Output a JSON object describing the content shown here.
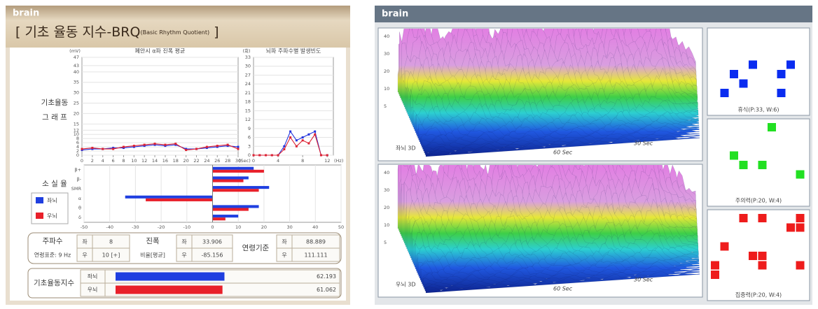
{
  "left": {
    "brand": "brain",
    "title": "[ 기초 율동 지수-BRQ",
    "title_sub": "(Basic Rhythm Quotient)",
    "title_end": " ]",
    "graph_label": [
      "기초율동",
      "그 래 프"
    ],
    "amplitude_chart": {
      "type": "line",
      "title": "폐안시 α파 진폭 평균",
      "y_unit": "(mV)",
      "x_unit": "(Sec)",
      "x": [
        0,
        2,
        4,
        6,
        8,
        10,
        12,
        14,
        16,
        18,
        20,
        22,
        24,
        26,
        28,
        30
      ],
      "xlim": [
        0,
        30
      ],
      "xticks": [
        0,
        2,
        4,
        6,
        8,
        10,
        12,
        14,
        16,
        18,
        20,
        22,
        24,
        26,
        28,
        30
      ],
      "ylim": [
        0,
        47
      ],
      "yticks": [
        0,
        2,
        4,
        6,
        8,
        10,
        12,
        15,
        20,
        25,
        30,
        35,
        40,
        43,
        47
      ],
      "series": [
        {
          "color": "#2233dd",
          "values": [
            2.5,
            3,
            3,
            3.5,
            3.5,
            4,
            4.5,
            5,
            4.5,
            5,
            3,
            3,
            3.5,
            4,
            4.5,
            4
          ]
        },
        {
          "color": "#dd2233",
          "values": [
            3,
            3.5,
            3,
            3,
            4,
            4.5,
            5,
            5.5,
            5,
            5.5,
            2.5,
            3,
            4,
            4.5,
            5,
            3
          ]
        }
      ]
    },
    "freq_chart": {
      "type": "line",
      "title": "뇌파 주파수별 발생빈도",
      "y_unit": "(회)",
      "x_unit": "(Hz)",
      "x": [
        0,
        1,
        2,
        3,
        4,
        5,
        6,
        7,
        8,
        9,
        10,
        11,
        12
      ],
      "xlim": [
        0,
        13
      ],
      "xticks": [
        0,
        4,
        8,
        12
      ],
      "ylim": [
        0,
        33
      ],
      "yticks": [
        0,
        3,
        6,
        9,
        12,
        15,
        18,
        21,
        24,
        27,
        30,
        33
      ],
      "series": [
        {
          "color": "#2233dd",
          "values": [
            0,
            0,
            0,
            0,
            0,
            3,
            8,
            5,
            6,
            7,
            8,
            0,
            0
          ]
        },
        {
          "color": "#dd2233",
          "values": [
            0,
            0,
            0,
            0,
            0,
            2,
            6,
            3,
            5,
            4,
            7,
            0,
            0
          ]
        }
      ]
    },
    "loss_chart": {
      "type": "hbar",
      "label": "소 실 율",
      "categories": [
        "β+",
        "β-",
        "SMR",
        "α",
        "θ",
        "δ"
      ],
      "xlim": [
        -50,
        50
      ],
      "xticks": [
        -50,
        -40,
        -30,
        -20,
        -10,
        0,
        10,
        20,
        30,
        40,
        50
      ],
      "series": [
        {
          "name": "좌뇌",
          "color": "#1f3fe0",
          "values": [
            16,
            14,
            22,
            -34,
            18,
            10
          ]
        },
        {
          "name": "우뇌",
          "color": "#e8202a",
          "values": [
            20,
            12,
            18,
            -26,
            14,
            5
          ]
        }
      ]
    },
    "summary": {
      "frequency": {
        "title": "주파수",
        "note": "연령표준: 9 Hz",
        "rows": [
          [
            "좌",
            8
          ],
          [
            "우",
            "10 [+]"
          ]
        ]
      },
      "amplitude": {
        "title": "진폭",
        "note": "비율[평균]",
        "rows": [
          [
            "좌",
            33.906
          ],
          [
            "우",
            -85.156
          ]
        ]
      },
      "age_standard": {
        "title": "연령기준",
        "rows": [
          [
            "좌",
            88.889
          ],
          [
            "우",
            111.111
          ]
        ]
      }
    },
    "brq": {
      "type": "hbar",
      "label": "기초율동지수",
      "categories": [
        "좌뇌",
        "우뇌"
      ],
      "values": [
        62.193,
        61.062
      ],
      "colors": [
        "#1f3fe0",
        "#e8202a"
      ],
      "xlim": [
        0,
        100
      ]
    }
  },
  "right": {
    "brand": "brain",
    "surfaces": [
      {
        "label": "좌뇌 3D",
        "time_labels": [
          "60 Sec",
          "30 Sec"
        ],
        "z_ticks": [
          40,
          30,
          20,
          10,
          5
        ]
      },
      {
        "label": "우뇌 3D",
        "time_labels": [
          "60 Sec",
          "30 Sec"
        ],
        "z_ticks": [
          40,
          30,
          20,
          10,
          5
        ]
      }
    ],
    "patterns": [
      {
        "label": "휴식(P:33, W:6)",
        "color": "#0a2cf0",
        "cells": [
          [
            2,
            4
          ],
          [
            4,
            3
          ],
          [
            3,
            5
          ],
          [
            7,
            4
          ],
          [
            8,
            3
          ],
          [
            1,
            6
          ],
          [
            7,
            6
          ]
        ]
      },
      {
        "label": "주의력(P:20, W:4)",
        "color": "#22e022",
        "cells": [
          [
            6,
            0
          ],
          [
            2,
            3
          ],
          [
            3,
            4
          ],
          [
            5,
            4
          ],
          [
            9,
            5
          ]
        ]
      },
      {
        "label": "집중력(P:20, W:4)",
        "color": "#ee1c1c",
        "cells": [
          [
            1,
            3
          ],
          [
            3,
            0
          ],
          [
            5,
            0
          ],
          [
            4,
            4
          ],
          [
            5,
            5
          ],
          [
            8,
            1
          ],
          [
            9,
            1
          ],
          [
            9,
            0
          ],
          [
            0,
            5
          ],
          [
            0,
            6
          ],
          [
            9,
            5
          ],
          [
            5,
            4
          ]
        ]
      }
    ]
  }
}
